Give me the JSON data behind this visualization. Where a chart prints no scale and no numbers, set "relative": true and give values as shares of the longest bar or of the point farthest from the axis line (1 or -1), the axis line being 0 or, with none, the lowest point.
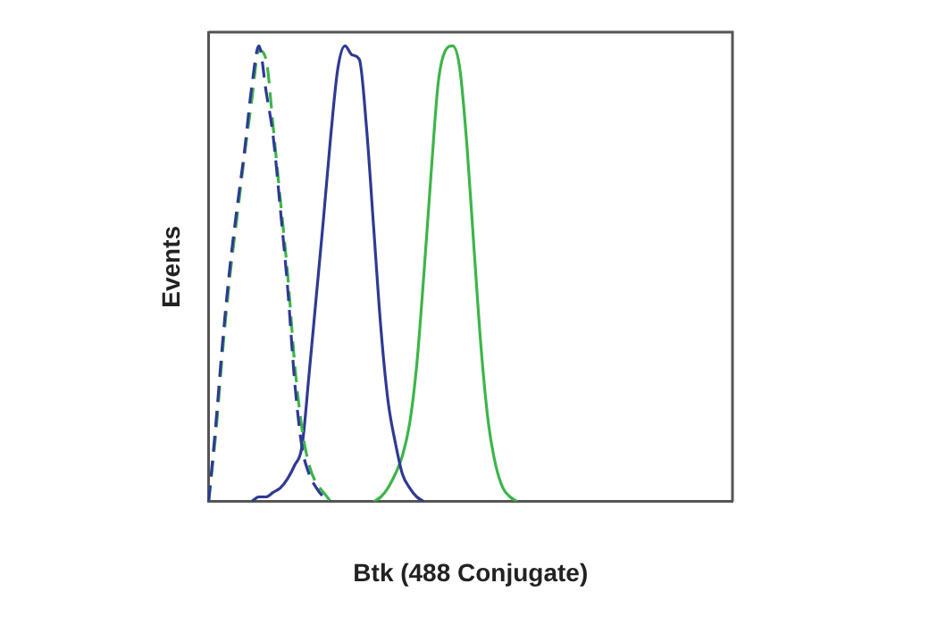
{
  "chart_data": {
    "type": "line",
    "relative": true,
    "xlabel": "Btk (488 Conjugate)",
    "ylabel": "Events",
    "legend": false,
    "grid": false,
    "marker": "none",
    "categories": [
      null,
      null,
      null,
      null,
      null,
      null,
      null,
      null,
      null,
      null,
      null,
      null,
      null,
      null,
      null,
      null,
      null,
      null,
      null,
      null,
      null,
      null,
      null,
      null,
      null,
      null,
      null,
      null,
      null,
      null,
      null,
      null,
      null,
      null,
      null,
      null,
      null,
      null,
      null,
      null,
      null,
      null,
      null,
      null,
      null,
      null,
      null,
      null,
      null,
      null,
      null,
      null,
      null,
      null,
      null,
      null,
      null,
      null,
      null,
      null,
      null,
      null,
      null,
      null,
      null,
      null,
      null,
      null,
      null,
      null,
      null,
      null,
      null,
      null
    ],
    "series": [
      {
        "color": "#2e3a94",
        "line_style": "dashed",
        "values": [
          0,
          0.17,
          0.36,
          0.52,
          0.65,
          0.77,
          0.91,
          1.0,
          0.9,
          0.8,
          0.64,
          0.47,
          0.26,
          0.12,
          0.06,
          0.03,
          0.01,
          0,
          null,
          null,
          null,
          null,
          null,
          null,
          null,
          null,
          null,
          null,
          null,
          null,
          null,
          null,
          null,
          null,
          null,
          null,
          null,
          null,
          null,
          null,
          null,
          null,
          null,
          null,
          null,
          null,
          null,
          null,
          null,
          null,
          null,
          null,
          null,
          null,
          null,
          null,
          null,
          null,
          null,
          null,
          null,
          null,
          null,
          null,
          null,
          null,
          null,
          null,
          null,
          null,
          null,
          null,
          null,
          null
        ]
      },
      {
        "color": "#3db54a",
        "line_style": "dashed",
        "values": [
          0,
          0.15,
          0.34,
          0.5,
          0.63,
          0.76,
          0.88,
          0.99,
          0.97,
          0.82,
          0.66,
          0.5,
          0.3,
          0.16,
          0.08,
          0.04,
          0.02,
          0,
          null,
          null,
          null,
          null,
          null,
          null,
          null,
          null,
          null,
          null,
          null,
          null,
          null,
          null,
          null,
          null,
          null,
          null,
          null,
          null,
          null,
          null,
          null,
          null,
          null,
          null,
          null,
          null,
          null,
          null,
          null,
          null,
          null,
          null,
          null,
          null,
          null,
          null,
          null,
          null,
          null,
          null,
          null,
          null,
          null,
          null,
          null,
          null,
          null,
          null,
          null,
          null,
          null,
          null,
          null,
          null
        ]
      },
      {
        "color": "#2e3a94",
        "line_style": "solid",
        "values": [
          null,
          null,
          null,
          null,
          null,
          null,
          0,
          0.01,
          0.01,
          0.02,
          0.03,
          0.05,
          0.08,
          0.12,
          0.28,
          0.45,
          0.62,
          0.8,
          0.95,
          1.0,
          0.98,
          0.97,
          0.82,
          0.6,
          0.38,
          0.22,
          0.13,
          0.06,
          0.03,
          0.01,
          0,
          null,
          null,
          null,
          null,
          null,
          null,
          null,
          null,
          null,
          null,
          null,
          null,
          null,
          null,
          null,
          null,
          null,
          null,
          null,
          null,
          null,
          null,
          null,
          null,
          null,
          null,
          null,
          null,
          null,
          null,
          null,
          null,
          null,
          null,
          null,
          null,
          null,
          null,
          null,
          null,
          null,
          null,
          null
        ]
      },
      {
        "color": "#3db54a",
        "line_style": "solid",
        "values": [
          null,
          null,
          null,
          null,
          null,
          null,
          null,
          null,
          null,
          null,
          null,
          null,
          null,
          null,
          null,
          null,
          null,
          null,
          null,
          null,
          null,
          null,
          null,
          0,
          0.01,
          0.03,
          0.06,
          0.1,
          0.17,
          0.3,
          0.5,
          0.72,
          0.92,
          0.99,
          1.0,
          0.95,
          0.78,
          0.55,
          0.33,
          0.17,
          0.08,
          0.03,
          0.01,
          0,
          null,
          null,
          null,
          null,
          null,
          null,
          null,
          null,
          null,
          null,
          null,
          null,
          null,
          null,
          null,
          null,
          null,
          null,
          null,
          null,
          null,
          null,
          null,
          null,
          null,
          null,
          null,
          null,
          null,
          null
        ]
      }
    ]
  }
}
